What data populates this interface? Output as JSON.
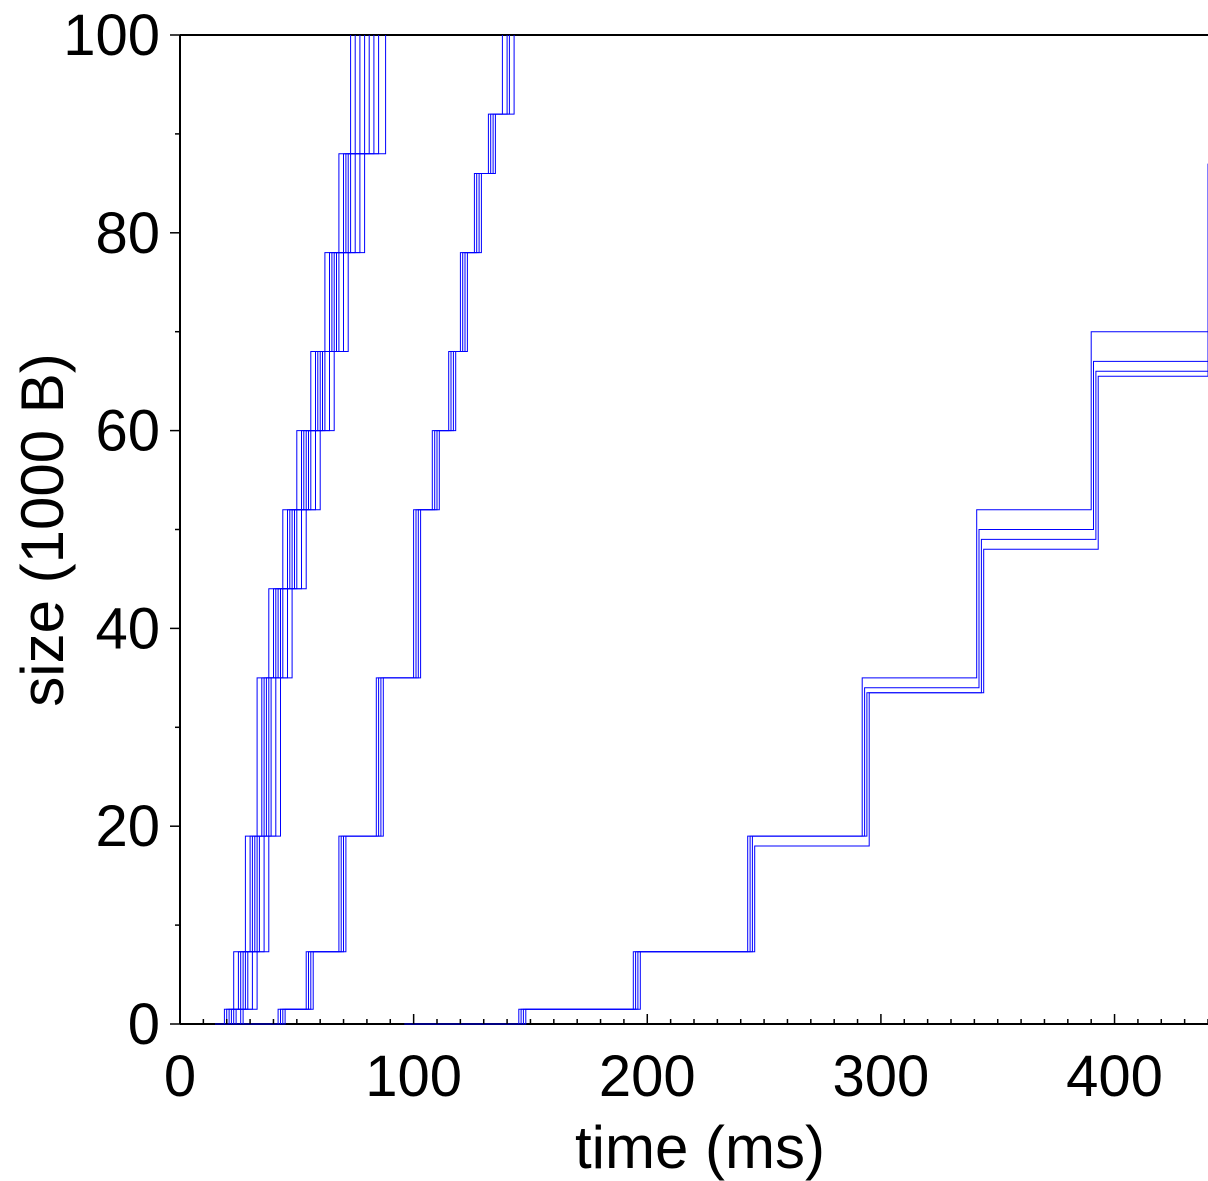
{
  "chart_data": {
    "type": "line",
    "title": "",
    "xlabel": "time (ms)",
    "ylabel": "size (1000 B)",
    "xlim": [
      0,
      440
    ],
    "ylim": [
      0,
      100
    ],
    "x_ticks": [
      "0",
      "100",
      "200",
      "300",
      "400"
    ],
    "y_ticks": [
      "0",
      "20",
      "40",
      "60",
      "80",
      "100"
    ],
    "grid": false,
    "legend": "none",
    "line_color": "#0000ff",
    "step_levels": [
      1.5,
      7.3,
      19.0,
      35.0,
      52.0,
      68.0,
      84.0,
      100.0
    ],
    "group_notes": "three families of stepwise cumulative-size curves",
    "series": [
      {
        "x": [
          15,
          19,
          23,
          28,
          33,
          38,
          44,
          50,
          56,
          62,
          68,
          73
        ],
        "y": [
          0,
          1.5,
          7.3,
          19,
          35,
          44,
          52,
          60,
          68,
          78,
          88,
          100
        ]
      },
      {
        "x": [
          16,
          20,
          25,
          30,
          35,
          40,
          46,
          52,
          58,
          64,
          70,
          75
        ],
        "y": [
          0,
          1.5,
          7.3,
          19,
          35,
          44,
          52,
          60,
          68,
          78,
          88,
          100
        ]
      },
      {
        "x": [
          17,
          21,
          26,
          31,
          36,
          41,
          47,
          53,
          59,
          65,
          71,
          77
        ],
        "y": [
          0,
          1.5,
          7.3,
          19,
          35,
          44,
          52,
          60,
          68,
          78,
          88,
          100
        ]
      },
      {
        "x": [
          18,
          22,
          27,
          32,
          37,
          42,
          48,
          54,
          60,
          66,
          72,
          79
        ],
        "y": [
          0,
          1.5,
          7.3,
          19,
          35,
          44,
          52,
          60,
          68,
          78,
          88,
          100
        ]
      },
      {
        "x": [
          19,
          23,
          28,
          33,
          38,
          43,
          49,
          55,
          61,
          67,
          73,
          81
        ],
        "y": [
          0,
          1.5,
          7.3,
          19,
          35,
          44,
          52,
          60,
          68,
          78,
          88,
          100
        ]
      },
      {
        "x": [
          20,
          24,
          29,
          34,
          39,
          44,
          50,
          56,
          62,
          68,
          75,
          83
        ],
        "y": [
          0,
          1.5,
          7.3,
          19,
          35,
          44,
          52,
          60,
          68,
          78,
          88,
          100
        ]
      },
      {
        "x": [
          21,
          26,
          31,
          36,
          41,
          46,
          52,
          58,
          64,
          70,
          77,
          85
        ],
        "y": [
          0,
          1.5,
          7.3,
          19,
          35,
          44,
          52,
          60,
          68,
          78,
          88,
          100
        ]
      },
      {
        "x": [
          23,
          27,
          33,
          38,
          43,
          48,
          54,
          60,
          66,
          72,
          79,
          88
        ],
        "y": [
          0,
          1.5,
          7.3,
          19,
          35,
          44,
          52,
          60,
          68,
          78,
          88,
          100
        ]
      },
      {
        "x": [
          27,
          42,
          54,
          68,
          84,
          100,
          108,
          115,
          120,
          126,
          132,
          138
        ],
        "y": [
          0,
          1.5,
          7.3,
          19,
          35,
          52,
          60,
          68,
          78,
          86,
          92,
          100
        ]
      },
      {
        "x": [
          29,
          43,
          55,
          69,
          85,
          101,
          109,
          116,
          121,
          127,
          133,
          140
        ],
        "y": [
          0,
          1.5,
          7.3,
          19,
          35,
          52,
          60,
          68,
          78,
          86,
          92,
          100
        ]
      },
      {
        "x": [
          31,
          44,
          56,
          70,
          86,
          102,
          110,
          117,
          122,
          128,
          134,
          141
        ],
        "y": [
          0,
          1.5,
          7.3,
          19,
          35,
          52,
          60,
          68,
          78,
          86,
          92,
          100
        ]
      },
      {
        "x": [
          33,
          45,
          57,
          71,
          87,
          103,
          111,
          118,
          123,
          129,
          135,
          143
        ],
        "y": [
          0,
          1.5,
          7.3,
          19,
          35,
          52,
          60,
          68,
          78,
          86,
          92,
          100
        ]
      },
      {
        "x": [
          96,
          145,
          194,
          243,
          292,
          341,
          390,
          440
        ],
        "y": [
          0,
          1.5,
          7.3,
          19,
          35,
          52,
          70,
          87
        ]
      },
      {
        "x": [
          97,
          146,
          195,
          244,
          293,
          342,
          391,
          440
        ],
        "y": [
          0,
          1.5,
          7.3,
          19,
          34,
          50,
          67,
          86
        ]
      },
      {
        "x": [
          98,
          147,
          196,
          245,
          294,
          343,
          392,
          440
        ],
        "y": [
          0,
          1.5,
          7.3,
          19,
          33.5,
          49,
          66,
          84
        ]
      },
      {
        "x": [
          99,
          148,
          197,
          246,
          295,
          344,
          393,
          440
        ],
        "y": [
          0,
          1.5,
          7.3,
          18,
          33.5,
          48,
          65.5,
          83
        ]
      }
    ]
  }
}
